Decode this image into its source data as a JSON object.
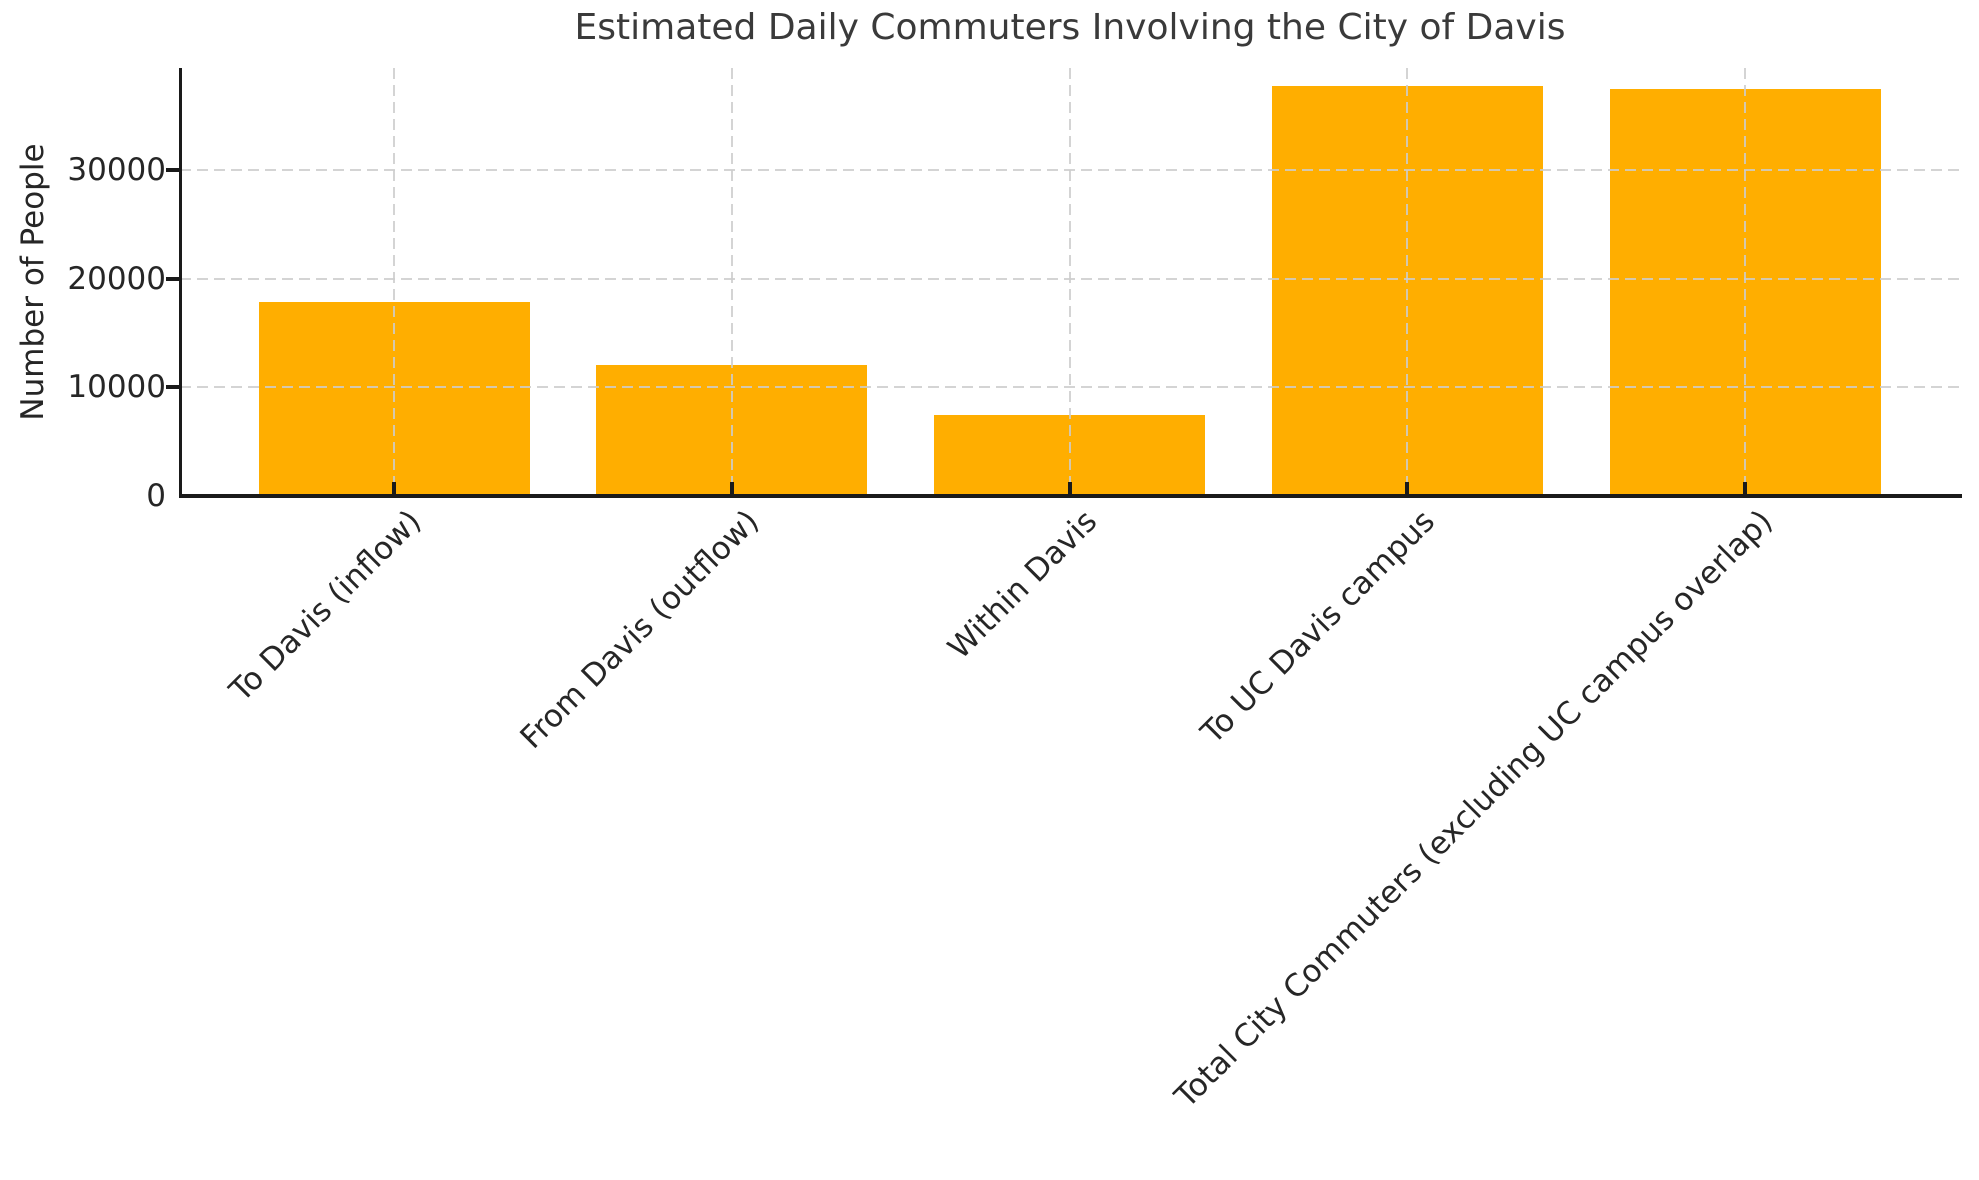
{
  "chart_data": {
    "type": "bar",
    "title": "Estimated Daily Commuters Involving the City of Davis",
    "xlabel": "",
    "ylabel": "Number of People",
    "categories": [
      "To Davis (inflow)",
      "From Davis (outflow)",
      "Within Davis",
      "To UC Davis campus",
      "Total City Commuters (excluding UC campus overlap)"
    ],
    "values": [
      17900,
      12100,
      7500,
      37700,
      37500
    ],
    "ylim": [
      0,
      39400
    ],
    "yticks": [
      0,
      10000,
      20000,
      30000
    ],
    "ytick_labels": [
      "0",
      "10000",
      "20000",
      "30000"
    ],
    "xtick_rotation_deg": 45,
    "grid": "dashed light-gray horizontal and vertical gridlines drawn over bars",
    "legend": "none",
    "bar_color": "#FFAE00"
  },
  "colors": {
    "bar": "#FFAE00",
    "axis": "#1a1a1a",
    "grid": "rgba(205,205,205,0.85)",
    "tick_text": "#262626",
    "title_text": "#3a3a3a",
    "background": "#ffffff"
  }
}
